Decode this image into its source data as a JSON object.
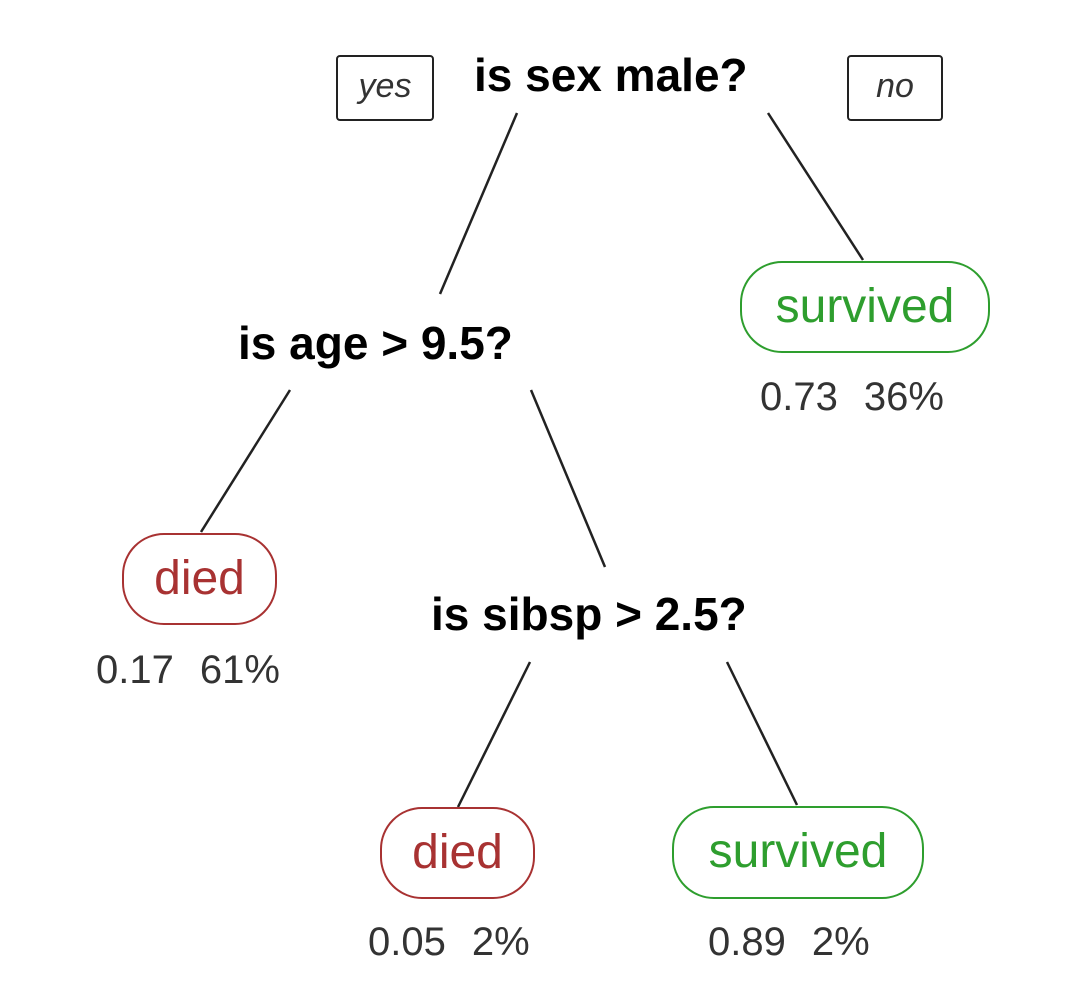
{
  "tree": {
    "root_question": "is sex male?",
    "yes_label": "yes",
    "no_label": "no",
    "age_question": "is age > 9.5?",
    "sibsp_question": "is sibsp > 2.5?",
    "leaves": [
      {
        "label": "died",
        "class": "died",
        "prob": "0.17",
        "pct": "61%"
      },
      {
        "label": "died",
        "class": "died",
        "prob": "0.05",
        "pct": "2%"
      },
      {
        "label": "survived",
        "class": "survived",
        "prob": "0.89",
        "pct": "2%"
      },
      {
        "label": "survived",
        "class": "survived",
        "prob": "0.73",
        "pct": "36%"
      }
    ]
  },
  "colors": {
    "died": "#a83232",
    "survived": "#2e9e2e",
    "edge": "#222222"
  }
}
